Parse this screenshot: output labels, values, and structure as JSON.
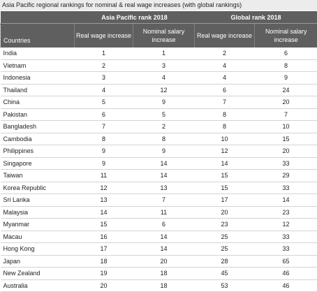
{
  "title": "Asia Pacific regional rankings for nominal & real wage increases (with global rankings)",
  "table": {
    "groups": [
      "Asia Pacific rank 2018",
      "Global rank 2018"
    ],
    "columns": [
      "Countries",
      "Real wage increase",
      "Nominal salary increase",
      "Real wage increase",
      "Nominal salary increase"
    ],
    "rows": [
      [
        "India",
        1,
        1,
        2,
        6
      ],
      [
        "Vietnam",
        2,
        3,
        4,
        8
      ],
      [
        "Indonesia",
        3,
        4,
        4,
        9
      ],
      [
        "Thailand",
        4,
        12,
        6,
        24
      ],
      [
        "China",
        5,
        9,
        7,
        20
      ],
      [
        "Pakistan",
        6,
        5,
        8,
        7
      ],
      [
        "Bangladesh",
        7,
        2,
        8,
        10
      ],
      [
        "Cambodia",
        8,
        8,
        10,
        15
      ],
      [
        "Philippines",
        9,
        9,
        12,
        20
      ],
      [
        "Singapore",
        9,
        14,
        14,
        33
      ],
      [
        "Taiwan",
        11,
        14,
        15,
        29
      ],
      [
        "Korea Republic",
        12,
        13,
        15,
        33
      ],
      [
        "Sri Lanka",
        13,
        7,
        17,
        14
      ],
      [
        "Malaysia",
        14,
        11,
        20,
        23
      ],
      [
        "Myanmar",
        15,
        6,
        23,
        12
      ],
      [
        "Macau",
        16,
        14,
        25,
        33
      ],
      [
        "Hong Kong",
        17,
        14,
        25,
        33
      ],
      [
        "Japan",
        18,
        20,
        28,
        65
      ],
      [
        "New Zealand",
        19,
        18,
        45,
        46
      ],
      [
        "Australia",
        20,
        18,
        53,
        46
      ]
    ]
  }
}
